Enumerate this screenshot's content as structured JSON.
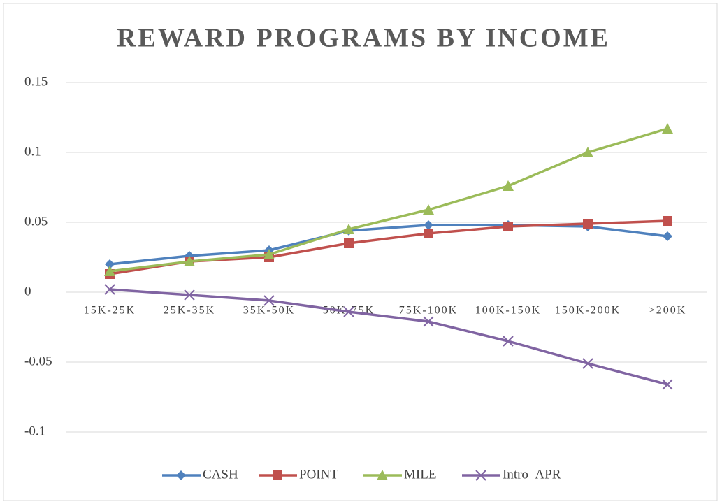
{
  "chart_data": {
    "type": "line",
    "title": "REWARD PROGRAMS BY INCOME",
    "categories": [
      "15K-25K",
      "25K-35K",
      "35K-50K",
      "50K-75K",
      "75K-100K",
      "100K-150K",
      "150K-200K",
      ">200K"
    ],
    "series": [
      {
        "name": "CASH",
        "color": "#4f81bd",
        "marker": "diamond",
        "values": [
          0.02,
          0.026,
          0.03,
          0.044,
          0.048,
          0.048,
          0.047,
          0.04
        ]
      },
      {
        "name": "POINT",
        "color": "#c0504d",
        "marker": "square",
        "values": [
          0.013,
          0.022,
          0.025,
          0.035,
          0.042,
          0.047,
          0.049,
          0.051
        ]
      },
      {
        "name": "MILE",
        "color": "#9bbb59",
        "marker": "triangle",
        "values": [
          0.015,
          0.022,
          0.027,
          0.045,
          0.059,
          0.076,
          0.1,
          0.117
        ]
      },
      {
        "name": "Intro_APR",
        "color": "#8064a2",
        "marker": "x",
        "values": [
          0.002,
          -0.002,
          -0.006,
          -0.014,
          -0.021,
          -0.035,
          -0.051,
          -0.066
        ]
      }
    ],
    "ylim": [
      -0.1,
      0.15
    ],
    "yticks": [
      -0.1,
      -0.05,
      0,
      0.05,
      0.1,
      0.15
    ],
    "grid": true,
    "legend": "bottom"
  }
}
